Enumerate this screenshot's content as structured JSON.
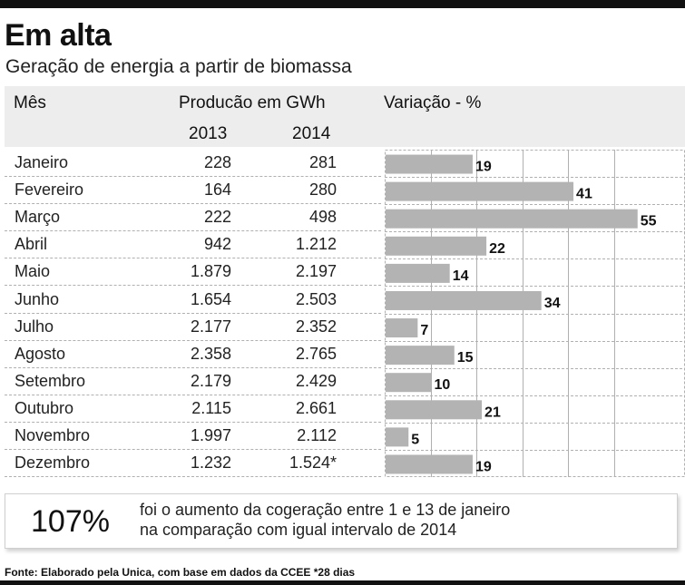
{
  "header": {
    "title": "Em alta",
    "subtitle": "Geração de energia a partir de biomassa"
  },
  "table": {
    "col_month": "Mês",
    "col_production": "Producão em GWh",
    "col_variation": "Variação - %",
    "year_a": "2013",
    "year_b": "2014",
    "rows": [
      {
        "month": "Janeiro",
        "v2013": "228",
        "v2014": "281"
      },
      {
        "month": "Fevereiro",
        "v2013": "164",
        "v2014": "280"
      },
      {
        "month": "Março",
        "v2013": "222",
        "v2014": "498"
      },
      {
        "month": "Abril",
        "v2013": "942",
        "v2014": "1.212"
      },
      {
        "month": "Maio",
        "v2013": "1.879",
        "v2014": "2.197"
      },
      {
        "month": "Junho",
        "v2013": "1.654",
        "v2014": "2.503"
      },
      {
        "month": "Julho",
        "v2013": "2.177",
        "v2014": "2.352"
      },
      {
        "month": "Agosto",
        "v2013": "2.358",
        "v2014": "2.765"
      },
      {
        "month": "Setembro",
        "v2013": "2.179",
        "v2014": "2.429"
      },
      {
        "month": "Outubro",
        "v2013": "2.115",
        "v2014": "2.661"
      },
      {
        "month": "Novembro",
        "v2013": "1.997",
        "v2014": "2.112"
      },
      {
        "month": "Dezembro",
        "v2013": "1.232",
        "v2014": "1.524*"
      }
    ]
  },
  "chart_data": {
    "type": "bar",
    "orientation": "horizontal",
    "categories": [
      "Janeiro",
      "Fevereiro",
      "Março",
      "Abril",
      "Maio",
      "Junho",
      "Julho",
      "Agosto",
      "Setembro",
      "Outubro",
      "Novembro",
      "Dezembro"
    ],
    "values": [
      19,
      41,
      55,
      22,
      14,
      34,
      7,
      15,
      10,
      21,
      5,
      19
    ],
    "title": "Variação - %",
    "xlim": [
      0,
      60
    ],
    "grid": true,
    "bar_color": "#b3b3b3",
    "grid_color": "#b0b0b0"
  },
  "callout": {
    "value": "107%",
    "text_line1": "foi o aumento da cogeração entre 1 e 13 de janeiro",
    "text_line2": "na comparação com igual intervalo de 2014"
  },
  "footer": {
    "source": "Fonte: Elaborado pela Unica, com base em dados da CCEE *28 dias"
  }
}
